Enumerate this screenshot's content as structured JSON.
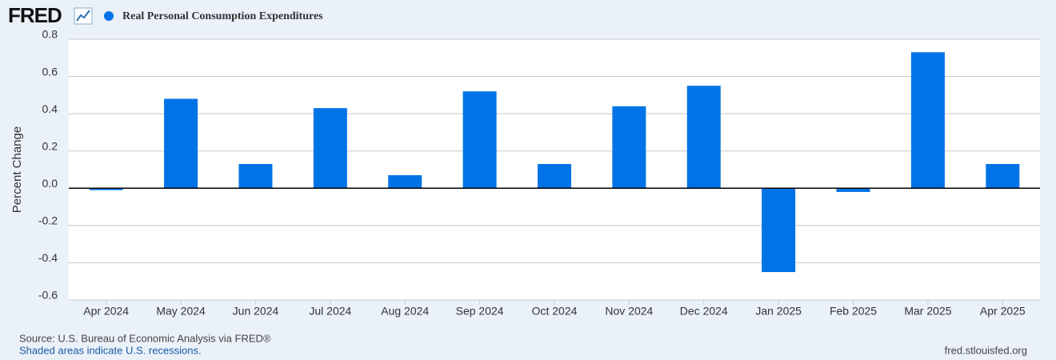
{
  "logo": "FRED",
  "source": "Source: U.S. Bureau of Economic Analysis via FRED®",
  "note": "Shaded areas indicate U.S. recessions.",
  "site": "fred.stlouisfed.org",
  "chart_data": {
    "type": "bar",
    "y_label": "Percent Change",
    "categories": [
      "Apr 2024",
      "May 2024",
      "Jun 2024",
      "Jul 2024",
      "Aug 2024",
      "Sep 2024",
      "Oct 2024",
      "Nov 2024",
      "Dec 2024",
      "Jan 2025",
      "Feb 2025",
      "Mar 2025",
      "Apr 2025"
    ],
    "series": [
      {
        "name": "Real Personal Consumption Expenditures",
        "color": "#0073e6",
        "values": [
          -0.01,
          0.48,
          0.13,
          0.43,
          0.07,
          0.52,
          0.13,
          0.44,
          0.55,
          -0.45,
          -0.02,
          0.73,
          0.13
        ]
      }
    ],
    "ylim": [
      -0.6,
      0.8
    ],
    "yticks": [
      0.8,
      0.6,
      0.4,
      0.2,
      {
        "value": 0,
        "label": "0.0"
      },
      -0.2,
      -0.4,
      -0.6
    ],
    "grid": true
  }
}
